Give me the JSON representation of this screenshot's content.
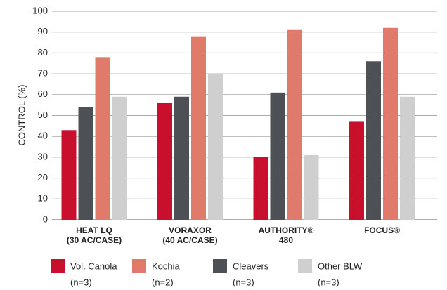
{
  "chart_data": {
    "type": "bar",
    "ylabel": "CONTROL (%)",
    "categories": [
      [
        "HEAT LQ",
        "(30 AC/CASE)"
      ],
      [
        "VORAXOR",
        "(40 AC/CASE)"
      ],
      [
        "AUTHORITY®",
        "480"
      ],
      [
        "FOCUS®"
      ]
    ],
    "series": [
      {
        "name": "Vol. Canola",
        "n_label": "(n=3)",
        "color": "#c8102e",
        "values": [
          43,
          56,
          30,
          47
        ]
      },
      {
        "name": "Kochia",
        "n_label": "(n=2)",
        "color": "#e07b6c",
        "values": [
          78,
          88,
          91,
          92
        ]
      },
      {
        "name": "Cleavers",
        "n_label": "(n=3)",
        "color": "#4d5054",
        "values": [
          54,
          59,
          61,
          76
        ]
      },
      {
        "name": "Other BLW",
        "n_label": "(n=3)",
        "color": "#cfcfcf",
        "values": [
          59,
          70,
          31,
          59
        ]
      }
    ],
    "ylim": [
      0,
      100
    ],
    "yticks": [
      0,
      10,
      20,
      30,
      40,
      50,
      60,
      70,
      80,
      90,
      100
    ],
    "grid": true
  }
}
